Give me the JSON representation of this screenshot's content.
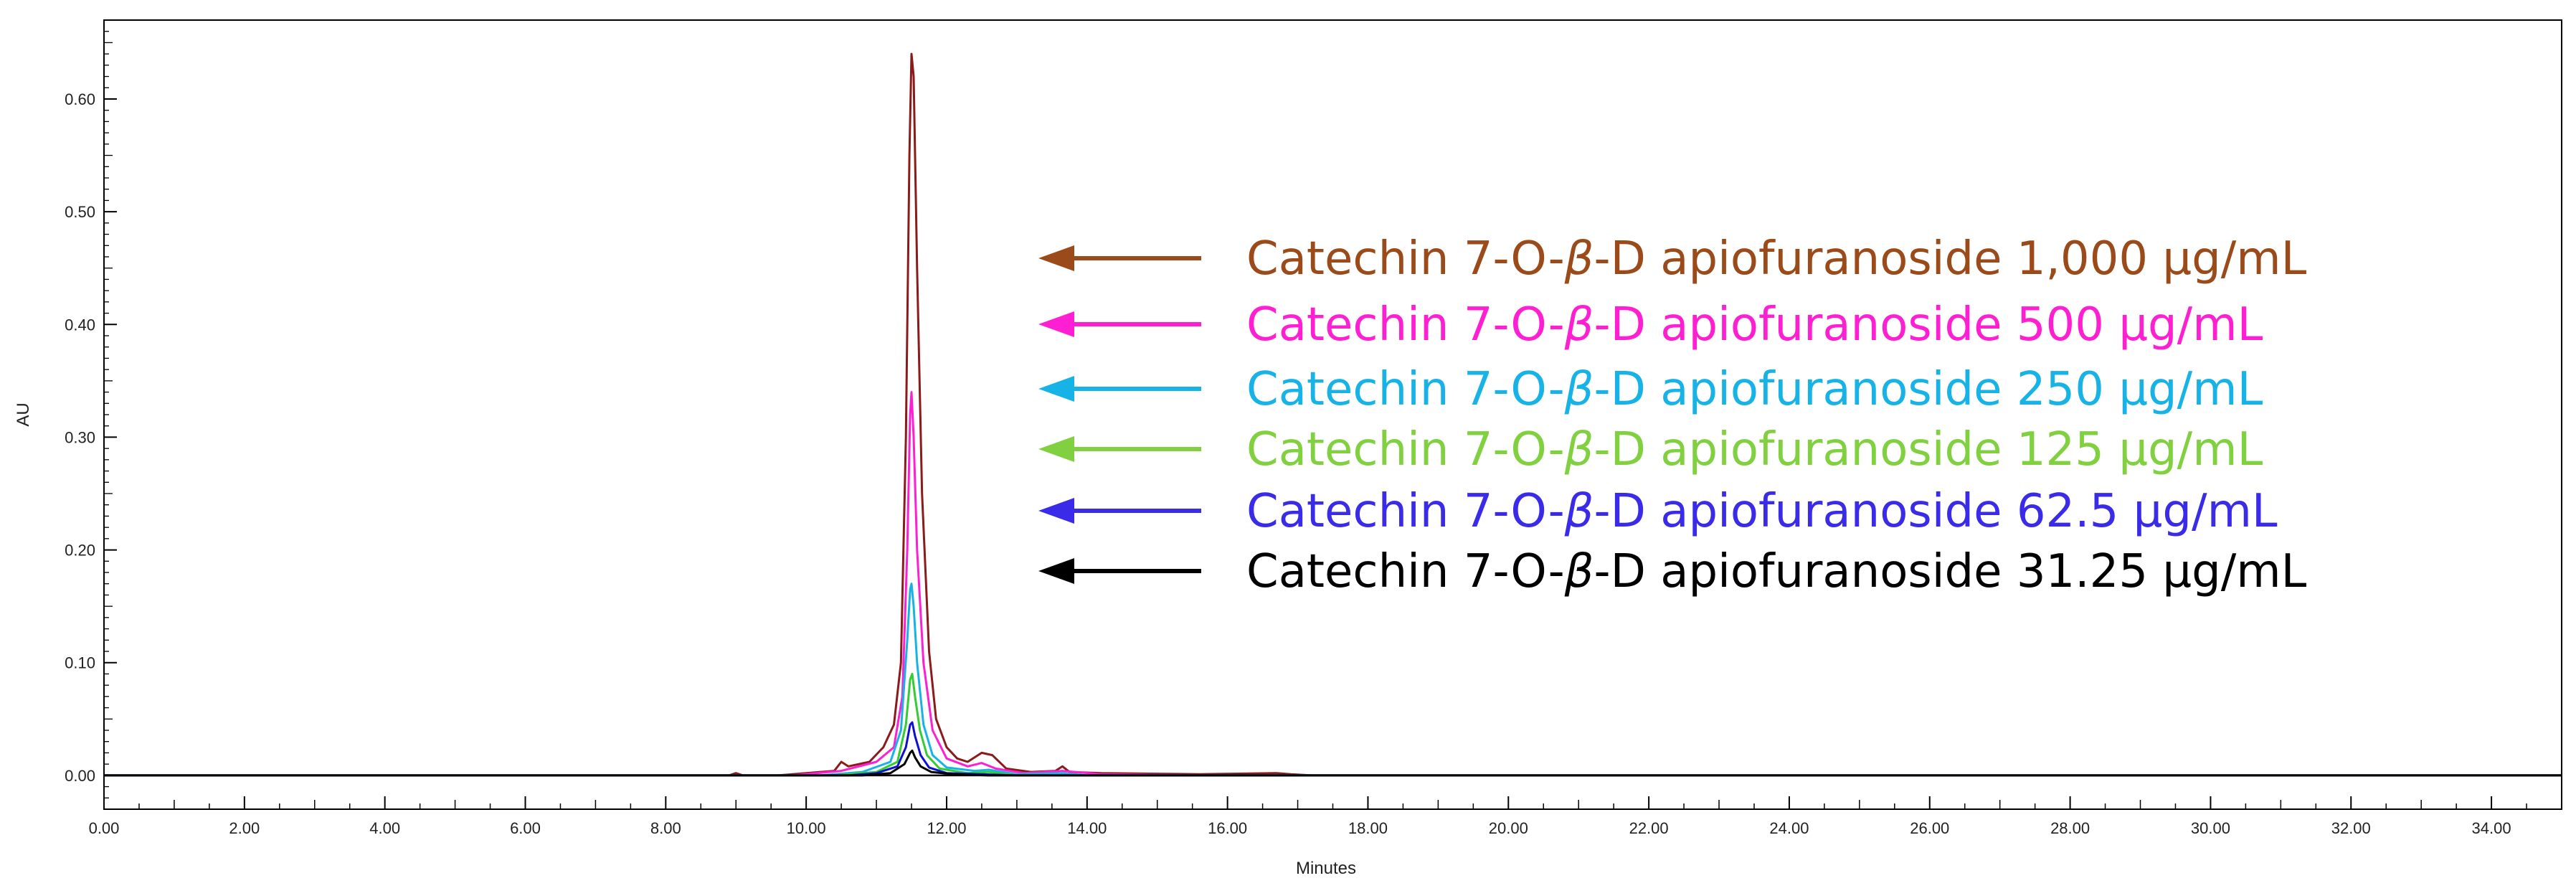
{
  "chart_data": {
    "type": "line",
    "title": "",
    "xlabel": "Minutes",
    "ylabel": "AU",
    "xlim": [
      0,
      35
    ],
    "ylim": [
      -0.03,
      0.67
    ],
    "x_ticks": [
      0,
      2,
      4,
      6,
      8,
      10,
      12,
      14,
      16,
      18,
      20,
      22,
      24,
      26,
      28,
      30,
      32,
      34
    ],
    "x_tick_labels": [
      "0.00",
      "2.00",
      "4.00",
      "6.00",
      "8.00",
      "10.00",
      "12.00",
      "14.00",
      "16.00",
      "18.00",
      "20.00",
      "22.00",
      "24.00",
      "26.00",
      "28.00",
      "30.00",
      "32.00",
      "34.00"
    ],
    "y_ticks": [
      0.0,
      0.1,
      0.2,
      0.3,
      0.4,
      0.5,
      0.6
    ],
    "y_tick_labels": [
      "0.00",
      "0.10",
      "0.20",
      "0.30",
      "0.40",
      "0.50",
      "0.60"
    ],
    "grid": false,
    "legend_position": "right of peak",
    "series": [
      {
        "name": "Catechin 7-O-β-D apiofuranoside 1,000 μg/mL",
        "label_parts": [
          "Catechin 7-O-",
          "β",
          "-D apiofuranoside 1,000 μg/mL"
        ],
        "color": "#8b1a1a",
        "legend_color": "#9b4a1a",
        "points": [
          [
            0,
            0
          ],
          [
            8.9,
            0
          ],
          [
            9.0,
            0.002
          ],
          [
            9.1,
            0
          ],
          [
            9.6,
            0
          ],
          [
            10.0,
            0.002
          ],
          [
            10.4,
            0.004
          ],
          [
            10.5,
            0.012
          ],
          [
            10.6,
            0.008
          ],
          [
            10.9,
            0.012
          ],
          [
            11.1,
            0.025
          ],
          [
            11.25,
            0.045
          ],
          [
            11.35,
            0.1
          ],
          [
            11.42,
            0.3
          ],
          [
            11.47,
            0.55
          ],
          [
            11.5,
            0.64
          ],
          [
            11.53,
            0.62
          ],
          [
            11.58,
            0.45
          ],
          [
            11.65,
            0.25
          ],
          [
            11.75,
            0.11
          ],
          [
            11.85,
            0.05
          ],
          [
            12.0,
            0.025
          ],
          [
            12.15,
            0.015
          ],
          [
            12.3,
            0.012
          ],
          [
            12.5,
            0.02
          ],
          [
            12.65,
            0.018
          ],
          [
            12.85,
            0.006
          ],
          [
            13.2,
            0.003
          ],
          [
            13.55,
            0.004
          ],
          [
            13.65,
            0.008
          ],
          [
            13.75,
            0.003
          ],
          [
            14.2,
            0.002
          ],
          [
            15.6,
            0.001
          ],
          [
            16.7,
            0.002
          ],
          [
            16.9,
            0.001
          ],
          [
            17.2,
            0
          ],
          [
            35,
            0
          ]
        ]
      },
      {
        "name": "Catechin 7-O-β-D apiofuranoside 500 μg/mL",
        "label_parts": [
          "Catechin 7-O-",
          "β",
          "-D apiofuranoside 500 μg/mL"
        ],
        "color": "#ff1fd2",
        "legend_color": "#ff1fd2",
        "points": [
          [
            0,
            0
          ],
          [
            9.8,
            0
          ],
          [
            10.5,
            0.004
          ],
          [
            11.0,
            0.012
          ],
          [
            11.25,
            0.025
          ],
          [
            11.37,
            0.07
          ],
          [
            11.44,
            0.2
          ],
          [
            11.48,
            0.32
          ],
          [
            11.5,
            0.34
          ],
          [
            11.53,
            0.3
          ],
          [
            11.58,
            0.2
          ],
          [
            11.67,
            0.1
          ],
          [
            11.8,
            0.04
          ],
          [
            12.0,
            0.015
          ],
          [
            12.3,
            0.008
          ],
          [
            12.5,
            0.011
          ],
          [
            12.7,
            0.006
          ],
          [
            13.1,
            0.002
          ],
          [
            13.65,
            0.004
          ],
          [
            14.2,
            0.001
          ],
          [
            15.6,
            0
          ],
          [
            35,
            0
          ]
        ]
      },
      {
        "name": "Catechin 7-O-β-D apiofuranoside 250 μg/mL",
        "label_parts": [
          "Catechin 7-O-",
          "β",
          "-D apiofuranoside 250 μg/mL"
        ],
        "color": "#17b3e6",
        "legend_color": "#17b3e6",
        "points": [
          [
            0,
            0
          ],
          [
            10.2,
            0
          ],
          [
            10.8,
            0.003
          ],
          [
            11.2,
            0.012
          ],
          [
            11.35,
            0.04
          ],
          [
            11.44,
            0.12
          ],
          [
            11.48,
            0.165
          ],
          [
            11.5,
            0.17
          ],
          [
            11.53,
            0.15
          ],
          [
            11.58,
            0.1
          ],
          [
            11.67,
            0.045
          ],
          [
            11.8,
            0.018
          ],
          [
            12.0,
            0.007
          ],
          [
            12.4,
            0.004
          ],
          [
            12.6,
            0.005
          ],
          [
            13.0,
            0.001
          ],
          [
            13.65,
            0.002
          ],
          [
            14.0,
            0
          ],
          [
            35,
            0
          ]
        ]
      },
      {
        "name": "Catechin 7-O-β-D apiofuranoside 125 μg/mL",
        "label_parts": [
          "Catechin 7-O-",
          "β",
          "-D apiofuranoside 125 μg/mL"
        ],
        "color": "#33cc33",
        "legend_color": "#80d040",
        "points": [
          [
            0,
            0
          ],
          [
            10.4,
            0
          ],
          [
            11.0,
            0.003
          ],
          [
            11.3,
            0.012
          ],
          [
            11.42,
            0.045
          ],
          [
            11.48,
            0.085
          ],
          [
            11.51,
            0.09
          ],
          [
            11.55,
            0.07
          ],
          [
            11.62,
            0.04
          ],
          [
            11.72,
            0.018
          ],
          [
            11.9,
            0.006
          ],
          [
            12.3,
            0.002
          ],
          [
            12.6,
            0.003
          ],
          [
            13.0,
            0
          ],
          [
            35,
            0
          ]
        ]
      },
      {
        "name": "Catechin 7-O-β-D apiofuranoside 62.5 μg/mL",
        "label_parts": [
          "Catechin 7-O-",
          "β",
          "-D apiofuranoside 62.5 μg/mL"
        ],
        "color": "#1010d0",
        "legend_color": "#3a2be8",
        "points": [
          [
            0,
            0
          ],
          [
            10.6,
            0
          ],
          [
            11.0,
            0.002
          ],
          [
            11.3,
            0.008
          ],
          [
            11.42,
            0.025
          ],
          [
            11.48,
            0.045
          ],
          [
            11.51,
            0.047
          ],
          [
            11.55,
            0.035
          ],
          [
            11.63,
            0.018
          ],
          [
            11.75,
            0.007
          ],
          [
            12.0,
            0.002
          ],
          [
            12.5,
            0.001
          ],
          [
            13.0,
            0
          ],
          [
            35,
            0
          ]
        ]
      },
      {
        "name": "Catechin 7-O-β-D apiofuranoside 31.25 μg/mL",
        "label_parts": [
          "Catechin 7-O-",
          "β",
          "-D apiofuranoside 31.25 μg/mL"
        ],
        "color": "#000000",
        "legend_color": "#000000",
        "points": [
          [
            0,
            0
          ],
          [
            10.8,
            0
          ],
          [
            11.2,
            0.002
          ],
          [
            11.4,
            0.01
          ],
          [
            11.48,
            0.02
          ],
          [
            11.51,
            0.022
          ],
          [
            11.55,
            0.016
          ],
          [
            11.63,
            0.008
          ],
          [
            11.78,
            0.003
          ],
          [
            12.1,
            0.001
          ],
          [
            12.6,
            0
          ],
          [
            35,
            0
          ]
        ]
      }
    ]
  }
}
